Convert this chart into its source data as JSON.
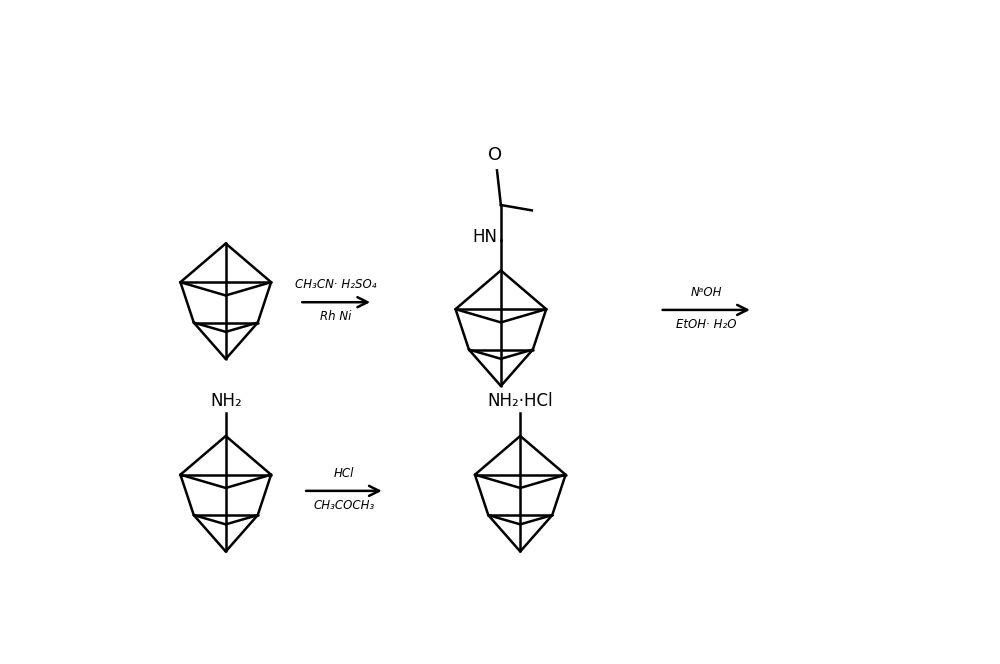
{
  "bg_color": "#ffffff",
  "line_color": "#000000",
  "line_width": 1.8,
  "text_color": "#000000",
  "fig_width": 10.0,
  "fig_height": 6.64,
  "arrow1_label_line1": "CH₃CN‧ H₂SO₄",
  "arrow1_label_line2": "Rh Ni",
  "arrow2_label_line1": "NᵃOH",
  "arrow2_label_line2": "EtOH‧ H₂O",
  "arrow3_label_line1": "HCl",
  "arrow3_label_line2": "CH₃COCH₃",
  "label_nh2_top": "NH₂",
  "label_nh2hcl_top": "NH₂·HCl",
  "label_hn_amide": "HN",
  "label_o": "O"
}
